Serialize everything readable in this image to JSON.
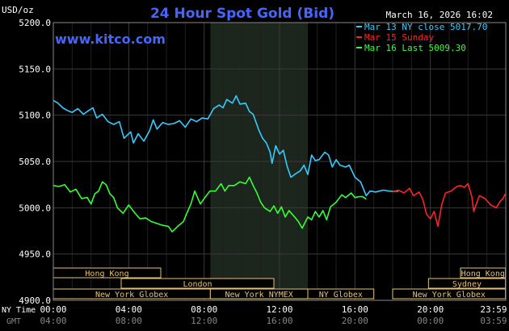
{
  "chart_data": {
    "type": "line",
    "title": "24 Hour Spot Gold (Bid)",
    "watermark": "www.kitco.com",
    "timestamp": "March 16, 2026 16:02",
    "y_unit_label": "USD/oz",
    "ylim": [
      4900,
      5200
    ],
    "y_ticks": [
      "5200.0",
      "5150.0",
      "5100.0",
      "5050.0",
      "5000.0",
      "4950.0",
      "4900.0"
    ],
    "x_row_label_1": "NY Time",
    "x_row_label_2": "GMT",
    "x_ticks_ny": [
      "00:00",
      "04:00",
      "08:00",
      "12:00",
      "16:00",
      "20:00",
      "23:59"
    ],
    "x_ticks_gmt": [
      "04:00",
      "08:00",
      "12:00",
      "16:00",
      "20:00",
      "00:00",
      "03:59"
    ],
    "x_tick_hours": [
      0,
      4,
      8,
      12,
      16,
      20,
      23.98
    ],
    "shaded_session_hours": [
      8.33,
      13.5
    ],
    "grid": true,
    "legend_position": "top-right",
    "series": [
      {
        "name": "Mar 13 NY close 5017.70",
        "color": "#33ccff",
        "points": [
          [
            0,
            5116
          ],
          [
            0.25,
            5113
          ],
          [
            0.5,
            5108
          ],
          [
            0.75,
            5105
          ],
          [
            1,
            5103
          ],
          [
            1.3,
            5107
          ],
          [
            1.6,
            5101
          ],
          [
            1.8,
            5104
          ],
          [
            2.1,
            5108
          ],
          [
            2.3,
            5097
          ],
          [
            2.6,
            5101
          ],
          [
            2.9,
            5093
          ],
          [
            3.2,
            5090
          ],
          [
            3.5,
            5093
          ],
          [
            3.75,
            5075
          ],
          [
            4.1,
            5082
          ],
          [
            4.25,
            5070
          ],
          [
            4.5,
            5080
          ],
          [
            4.8,
            5072
          ],
          [
            5.1,
            5083
          ],
          [
            5.3,
            5095
          ],
          [
            5.5,
            5085
          ],
          [
            5.8,
            5092
          ],
          [
            6.1,
            5090
          ],
          [
            6.4,
            5091
          ],
          [
            6.7,
            5094
          ],
          [
            7.0,
            5087
          ],
          [
            7.3,
            5096
          ],
          [
            7.6,
            5093
          ],
          [
            7.9,
            5097
          ],
          [
            8.2,
            5096
          ],
          [
            8.5,
            5107
          ],
          [
            8.8,
            5111
          ],
          [
            9.0,
            5108
          ],
          [
            9.2,
            5117
          ],
          [
            9.5,
            5113
          ],
          [
            9.7,
            5121
          ],
          [
            9.9,
            5112
          ],
          [
            10.2,
            5113
          ],
          [
            10.4,
            5104
          ],
          [
            10.6,
            5101
          ],
          [
            10.9,
            5084
          ],
          [
            11.1,
            5075
          ],
          [
            11.3,
            5070
          ],
          [
            11.5,
            5060
          ],
          [
            11.6,
            5048
          ],
          [
            11.8,
            5067
          ],
          [
            12.0,
            5058
          ],
          [
            12.2,
            5062
          ],
          [
            12.4,
            5045
          ],
          [
            12.6,
            5033
          ],
          [
            12.8,
            5036
          ],
          [
            13.1,
            5040
          ],
          [
            13.3,
            5046
          ],
          [
            13.5,
            5036
          ],
          [
            13.7,
            5057
          ],
          [
            13.9,
            5051
          ],
          [
            14.1,
            5052
          ],
          [
            14.4,
            5060
          ],
          [
            14.6,
            5057
          ],
          [
            14.8,
            5044
          ],
          [
            15.0,
            5052
          ],
          [
            15.2,
            5046
          ],
          [
            15.5,
            5044
          ],
          [
            15.7,
            5046
          ],
          [
            16.0,
            5033
          ],
          [
            16.3,
            5028
          ],
          [
            16.6,
            5013
          ],
          [
            16.8,
            5018
          ],
          [
            17.1,
            5017
          ],
          [
            17.5,
            5019
          ],
          [
            17.9,
            5017.7
          ],
          [
            18.3,
            5017.7
          ]
        ]
      },
      {
        "name": "Mar 15 Sunday",
        "color": "#ff2222",
        "points": [
          [
            18.0,
            5017
          ],
          [
            18.3,
            5019
          ],
          [
            18.6,
            5016
          ],
          [
            18.9,
            5021
          ],
          [
            19.1,
            5013
          ],
          [
            19.4,
            5017
          ],
          [
            19.6,
            5009
          ],
          [
            19.8,
            4993
          ],
          [
            20.0,
            4988
          ],
          [
            20.2,
            4996
          ],
          [
            20.4,
            4980
          ],
          [
            20.6,
            5003
          ],
          [
            20.8,
            5016
          ],
          [
            21.1,
            5018
          ],
          [
            21.4,
            5023
          ],
          [
            21.6,
            5024
          ],
          [
            21.8,
            5022
          ],
          [
            22.0,
            5026
          ],
          [
            22.2,
            5012
          ],
          [
            22.3,
            4996
          ],
          [
            22.6,
            5013
          ],
          [
            22.9,
            5010
          ],
          [
            23.2,
            5003
          ],
          [
            23.5,
            5000
          ],
          [
            23.7,
            5007
          ],
          [
            23.85,
            5010
          ],
          [
            23.98,
            5015
          ]
        ]
      },
      {
        "name": "Mar 16 Last 5009.30",
        "color": "#33ff33",
        "points": [
          [
            0,
            5024
          ],
          [
            0.3,
            5023
          ],
          [
            0.6,
            5025
          ],
          [
            0.9,
            5017
          ],
          [
            1.2,
            5020
          ],
          [
            1.5,
            5010
          ],
          [
            1.8,
            5011
          ],
          [
            2.0,
            5004
          ],
          [
            2.2,
            5015
          ],
          [
            2.4,
            5018
          ],
          [
            2.6,
            5028
          ],
          [
            2.8,
            5025
          ],
          [
            3.0,
            5015
          ],
          [
            3.2,
            5011
          ],
          [
            3.4,
            5000
          ],
          [
            3.7,
            4994
          ],
          [
            4.0,
            5003
          ],
          [
            4.3,
            4995
          ],
          [
            4.6,
            4988
          ],
          [
            4.9,
            4989
          ],
          [
            5.2,
            4985
          ],
          [
            5.5,
            4983
          ],
          [
            5.8,
            4981
          ],
          [
            6.1,
            4980
          ],
          [
            6.3,
            4974
          ],
          [
            6.6,
            4980
          ],
          [
            6.9,
            4985
          ],
          [
            7.1,
            4995
          ],
          [
            7.3,
            5004
          ],
          [
            7.5,
            5018
          ],
          [
            7.8,
            5004
          ],
          [
            8.0,
            5010
          ],
          [
            8.3,
            5018
          ],
          [
            8.6,
            5018
          ],
          [
            8.9,
            5026
          ],
          [
            9.1,
            5018
          ],
          [
            9.3,
            5024
          ],
          [
            9.6,
            5024
          ],
          [
            9.9,
            5028
          ],
          [
            10.2,
            5026
          ],
          [
            10.4,
            5033
          ],
          [
            10.6,
            5024
          ],
          [
            10.8,
            5016
          ],
          [
            11.0,
            5006
          ],
          [
            11.2,
            5000
          ],
          [
            11.5,
            4996
          ],
          [
            11.7,
            5002
          ],
          [
            11.9,
            4994
          ],
          [
            12.1,
            5001
          ],
          [
            12.3,
            4990
          ],
          [
            12.5,
            4997
          ],
          [
            12.8,
            4990
          ],
          [
            13.0,
            4985
          ],
          [
            13.2,
            4978
          ],
          [
            13.5,
            4990
          ],
          [
            13.7,
            4987
          ],
          [
            13.9,
            4996
          ],
          [
            14.1,
            4990
          ],
          [
            14.3,
            4997
          ],
          [
            14.5,
            4987
          ],
          [
            14.7,
            5001
          ],
          [
            15.0,
            5006
          ],
          [
            15.3,
            5014
          ],
          [
            15.5,
            5011
          ],
          [
            15.8,
            5016
          ],
          [
            16.0,
            5011
          ],
          [
            16.2,
            5012
          ],
          [
            16.4,
            5012
          ],
          [
            16.6,
            5009.3
          ]
        ]
      }
    ],
    "session_rows": [
      [
        {
          "label": "Hong Kong",
          "start": 0,
          "end": 5.7
        },
        {
          "label": "Hong Kong",
          "start": 21.6,
          "end": 23.98
        }
      ],
      [
        {
          "label": "London",
          "start": 3.6,
          "end": 11.7
        },
        {
          "label": "Sydney",
          "start": 19.9,
          "end": 23.98
        }
      ],
      [
        {
          "label": "New York Globex",
          "start": 0,
          "end": 8.33
        },
        {
          "label": "New York NYMEX",
          "start": 8.33,
          "end": 13.5
        },
        {
          "label": "NY Globex",
          "start": 13.5,
          "end": 17.0
        },
        {
          "label": "New York Globex",
          "start": 18.0,
          "end": 23.98
        }
      ]
    ]
  }
}
